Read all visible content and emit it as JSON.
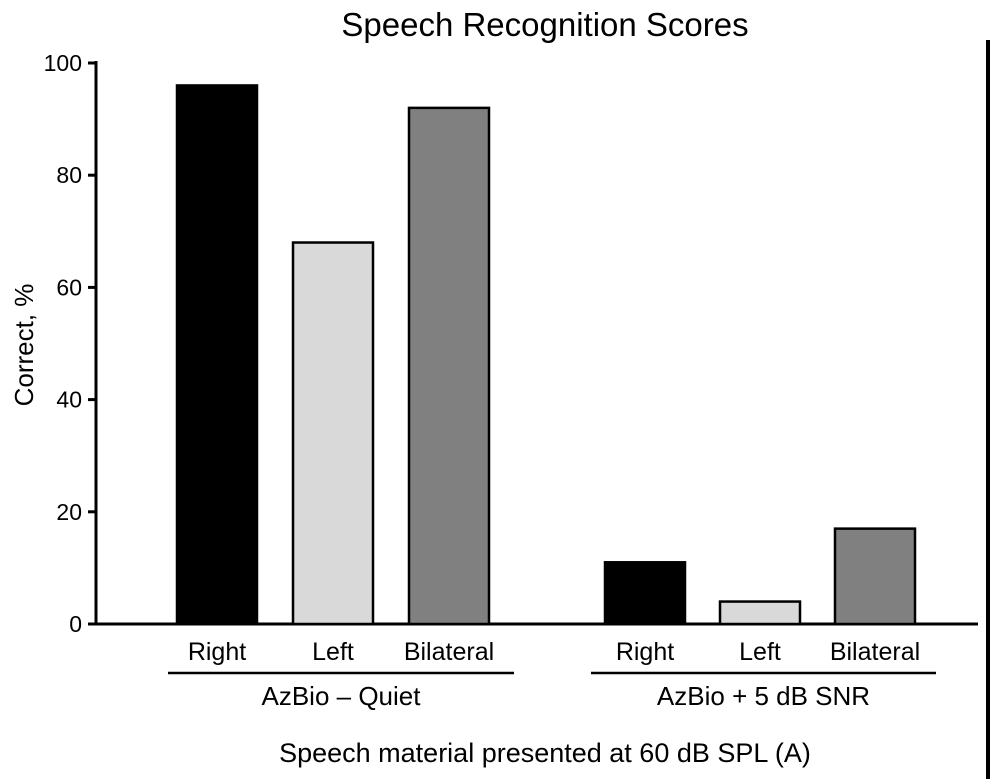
{
  "chart_data": {
    "type": "bar",
    "title": "Speech Recognition Scores",
    "xlabel": "Speech material presented at 60 dB SPL (A)",
    "ylabel": "Correct, %",
    "ylim": [
      0,
      100
    ],
    "yticks": [
      0,
      20,
      40,
      60,
      80,
      100
    ],
    "grid": false,
    "legend": "none",
    "groups": [
      {
        "name": "AzBio – Quiet",
        "bars": [
          {
            "label": "Right",
            "value": 96,
            "color": "#000000"
          },
          {
            "label": "Left",
            "value": 68,
            "color": "#d9d9d9"
          },
          {
            "label": "Bilateral",
            "value": 92,
            "color": "#808080"
          }
        ]
      },
      {
        "name": "AzBio + 5 dB SNR",
        "bars": [
          {
            "label": "Right",
            "value": 11,
            "color": "#000000"
          },
          {
            "label": "Left",
            "value": 4,
            "color": "#d9d9d9"
          },
          {
            "label": "Bilateral",
            "value": 17,
            "color": "#808080"
          }
        ]
      }
    ]
  }
}
